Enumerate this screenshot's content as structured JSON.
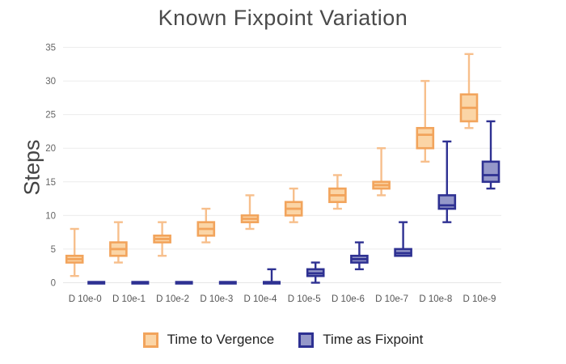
{
  "chart_data": {
    "type": "boxplot",
    "title": "Known Fixpoint Variation",
    "ylabel": "Steps",
    "xlabel": "",
    "categories": [
      "D 10e-0",
      "D 10e-1",
      "D 10e-2",
      "D 10e-3",
      "D 10e-4",
      "D 10e-5",
      "D 10e-6",
      "D 10e-7",
      "D 10e-8",
      "D 10e-9"
    ],
    "yticks": [
      0,
      5,
      10,
      15,
      20,
      25,
      30,
      35
    ],
    "ylim": [
      0,
      35
    ],
    "grid": true,
    "legend_position": "bottom",
    "series": [
      {
        "name": "Time to Vergence",
        "fill": "#FBD5A6",
        "stroke": "#F2A45C",
        "whisker": "#F7BF8C",
        "boxes": [
          {
            "min": 1,
            "q1": 3,
            "med": 3.5,
            "q3": 4,
            "max": 8
          },
          {
            "min": 3,
            "q1": 4,
            "med": 5,
            "q3": 6,
            "max": 9
          },
          {
            "min": 4,
            "q1": 6,
            "med": 6.5,
            "q3": 7,
            "max": 9
          },
          {
            "min": 6,
            "q1": 7,
            "med": 8,
            "q3": 9,
            "max": 11
          },
          {
            "min": 8,
            "q1": 9,
            "med": 9.5,
            "q3": 10,
            "max": 13
          },
          {
            "min": 9,
            "q1": 10,
            "med": 11,
            "q3": 12,
            "max": 14
          },
          {
            "min": 11,
            "q1": 12,
            "med": 13,
            "q3": 14,
            "max": 16
          },
          {
            "min": 13,
            "q1": 14,
            "med": 14.5,
            "q3": 15,
            "max": 20
          },
          {
            "min": 18,
            "q1": 20,
            "med": 22,
            "q3": 23,
            "max": 30
          },
          {
            "min": 23,
            "q1": 24,
            "med": 26,
            "q3": 28,
            "max": 34
          }
        ]
      },
      {
        "name": "Time as Fixpoint",
        "fill": "#9598C9",
        "stroke": "#2E3192",
        "whisker": "#2E3192",
        "boxes": [
          {
            "min": 0,
            "q1": 0,
            "med": 0,
            "q3": 0,
            "max": 0
          },
          {
            "min": 0,
            "q1": 0,
            "med": 0,
            "q3": 0,
            "max": 0
          },
          {
            "min": 0,
            "q1": 0,
            "med": 0,
            "q3": 0,
            "max": 0
          },
          {
            "min": 0,
            "q1": 0,
            "med": 0,
            "q3": 0,
            "max": 0
          },
          {
            "min": 0,
            "q1": 0,
            "med": 0,
            "q3": 0,
            "max": 2
          },
          {
            "min": 0,
            "q1": 1,
            "med": 1.4,
            "q3": 2,
            "max": 3
          },
          {
            "min": 2,
            "q1": 3,
            "med": 3.5,
            "q3": 4,
            "max": 6
          },
          {
            "min": 4,
            "q1": 4,
            "med": 4.4,
            "q3": 5,
            "max": 9
          },
          {
            "min": 9,
            "q1": 11,
            "med": 11.5,
            "q3": 13,
            "max": 21
          },
          {
            "min": 14,
            "q1": 15,
            "med": 16,
            "q3": 18,
            "max": 24
          }
        ]
      }
    ],
    "axis_colors": {
      "ytick": "#666666",
      "xtick": "#555555",
      "gridline": "#ececec",
      "zeroline": "#e6e6e6"
    }
  }
}
